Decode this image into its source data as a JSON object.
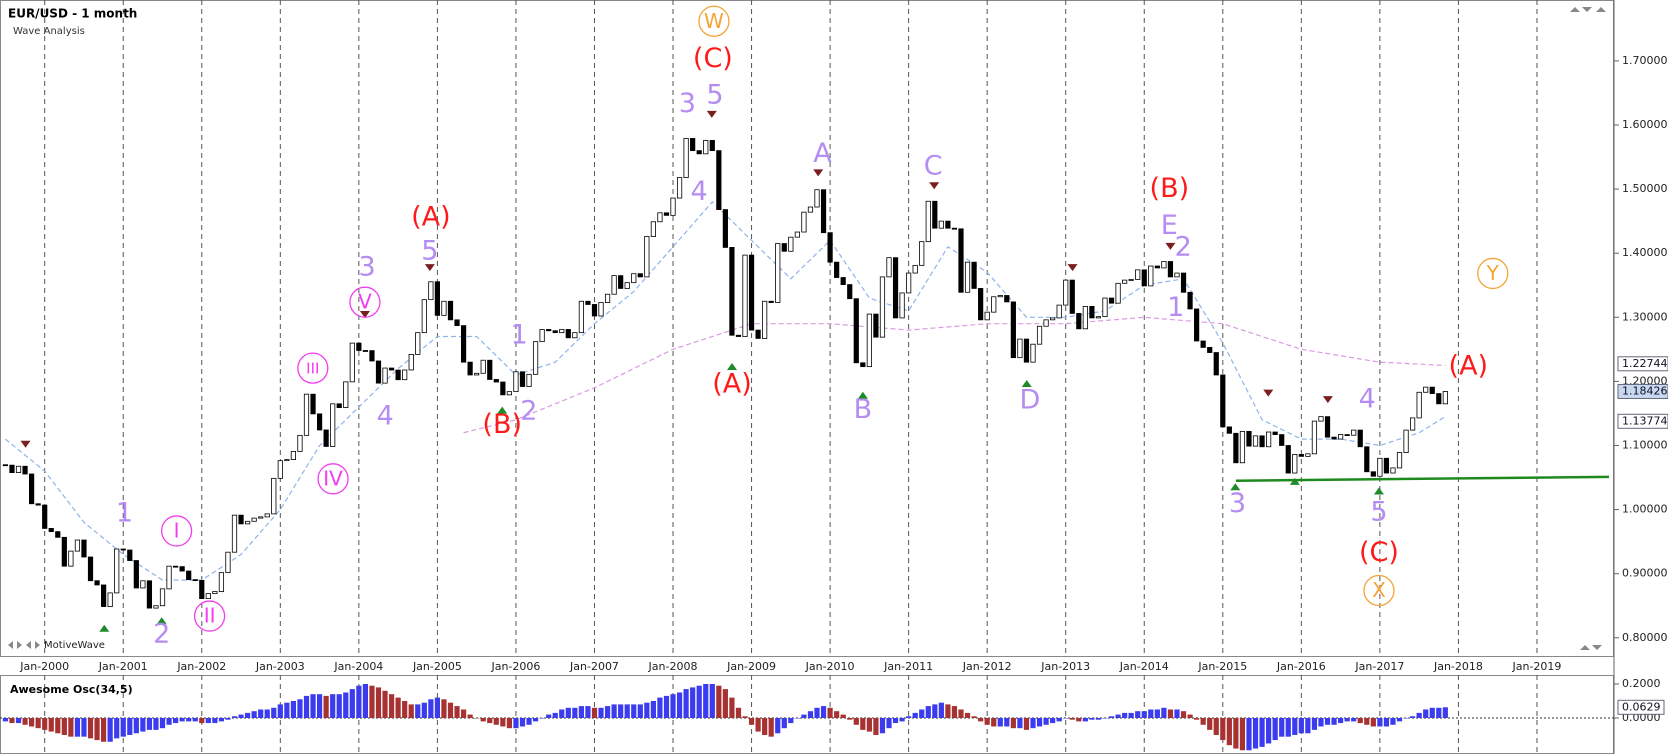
{
  "chart_data": {
    "type": "candlestick",
    "title": "EUR/USD - 1 month",
    "subtitle": "Wave Analysis",
    "watermark": "MotiveWave",
    "categories": [
      null,
      null,
      null,
      null,
      null,
      null,
      "Jan-2000",
      null,
      null,
      null,
      null,
      null,
      null,
      null,
      null,
      null,
      null,
      null,
      "Jan-2001",
      null,
      null,
      null,
      null,
      null,
      null,
      null,
      null,
      null,
      null,
      null,
      "Jan-2002",
      null,
      null,
      null,
      null,
      null,
      null,
      null,
      null,
      null,
      null,
      null,
      "Jan-2003",
      null,
      null,
      null,
      null,
      null,
      null,
      null,
      null,
      null,
      null,
      null,
      "Jan-2004",
      null,
      null,
      null,
      null,
      null,
      null,
      null,
      null,
      null,
      null,
      null,
      "Jan-2005",
      null,
      null,
      null,
      null,
      null,
      null,
      null,
      null,
      null,
      null,
      null,
      "Jan-2006",
      null,
      null,
      null,
      null,
      null,
      null,
      null,
      null,
      null,
      null,
      null,
      "Jan-2007",
      null,
      null,
      null,
      null,
      null,
      null,
      null,
      null,
      null,
      null,
      null,
      "Jan-2008",
      null,
      null,
      null,
      null,
      null,
      null,
      null,
      null,
      null,
      null,
      null,
      "Jan-2009",
      null,
      null,
      null,
      null,
      null,
      null,
      null,
      null,
      null,
      null,
      null,
      "Jan-2010",
      null,
      null,
      null,
      null,
      null,
      null,
      null,
      null,
      null,
      null,
      null,
      "Jan-2011",
      null,
      null,
      null,
      null,
      null,
      null,
      null,
      null,
      null,
      null,
      null,
      "Jan-2012",
      null,
      null,
      null,
      null,
      null,
      null,
      null,
      null,
      null,
      null,
      null,
      "Jan-2013",
      null,
      null,
      null,
      null,
      null,
      null,
      null,
      null,
      null,
      null,
      null,
      "Jan-2014",
      null,
      null,
      null,
      null,
      null,
      null,
      null,
      null,
      null,
      null,
      null,
      "Jan-2015",
      null,
      null,
      null,
      null,
      null,
      null,
      null,
      null,
      null,
      null,
      null,
      "Jan-2016",
      null,
      null,
      null,
      null,
      null,
      null,
      null,
      null,
      null,
      null,
      null,
      "Jan-2017",
      null,
      null,
      null,
      null,
      null,
      null,
      null,
      null,
      null,
      null,
      null,
      "Jan-2018",
      null,
      null,
      null,
      null,
      null,
      null,
      null,
      null,
      null,
      null,
      null,
      "Jan-2019",
      null,
      null,
      null,
      null,
      null,
      null,
      null,
      null,
      null,
      null,
      null
    ],
    "open": 1.07,
    "close": [
      1.0693,
      1.0577,
      1.0676,
      1.0555,
      1.0091,
      1.007,
      0.9706,
      0.9656,
      0.9567,
      0.9117,
      0.9352,
      0.9525,
      0.926,
      0.889,
      0.8824,
      0.8487,
      0.87,
      0.9385,
      0.9369,
      0.9205,
      0.8777,
      0.8889,
      0.8463,
      0.85,
      0.8763,
      0.9117,
      0.911,
      0.9041,
      0.8907,
      0.8895,
      0.8611,
      0.8689,
      0.8721,
      0.9016,
      0.9335,
      0.9913,
      0.9777,
      0.9817,
      0.9867,
      0.9886,
      0.9933,
      1.0487,
      1.0763,
      1.078,
      1.0907,
      1.1158,
      1.18,
      1.1493,
      1.1242,
      1.0985,
      1.165,
      1.1591,
      1.1993,
      1.2597,
      1.2482,
      1.248,
      1.2318,
      1.1973,
      1.2208,
      1.2177,
      1.2026,
      1.2178,
      1.2421,
      1.276,
      1.3275,
      1.3554,
      1.303,
      1.325,
      1.296,
      1.287,
      1.23,
      1.21,
      1.2126,
      1.233,
      1.203,
      1.199,
      1.179,
      1.184,
      1.215,
      1.192,
      1.211,
      1.262,
      1.281,
      1.279,
      1.276,
      1.281,
      1.268,
      1.276,
      1.325,
      1.32,
      1.302,
      1.323,
      1.336,
      1.365,
      1.345,
      1.354,
      1.368,
      1.363,
      1.426,
      1.449,
      1.463,
      1.459,
      1.486,
      1.518,
      1.579,
      1.56,
      1.555,
      1.576,
      1.56,
      1.468,
      1.409,
      1.272,
      1.27,
      1.397,
      1.28,
      1.267,
      1.325,
      1.323,
      1.415,
      1.403,
      1.425,
      1.433,
      1.464,
      1.472,
      1.499,
      1.432,
      1.386,
      1.362,
      1.351,
      1.329,
      1.229,
      1.223,
      1.305,
      1.269,
      1.363,
      1.393,
      1.299,
      1.338,
      1.369,
      1.381,
      1.418,
      1.481,
      1.439,
      1.45,
      1.439,
      1.438,
      1.339,
      1.386,
      1.345,
      1.296,
      1.308,
      1.332,
      1.334,
      1.324,
      1.237,
      1.266,
      1.23,
      1.258,
      1.286,
      1.296,
      1.299,
      1.319,
      1.358,
      1.306,
      1.282,
      1.317,
      1.299,
      1.301,
      1.33,
      1.322,
      1.353,
      1.358,
      1.359,
      1.374,
      1.349,
      1.38,
      1.377,
      1.387,
      1.363,
      1.369,
      1.339,
      1.313,
      1.263,
      1.253,
      1.245,
      1.21,
      1.129,
      1.119,
      1.073,
      1.122,
      1.099,
      1.115,
      1.098,
      1.121,
      1.117,
      1.1,
      1.057,
      1.086,
      1.083,
      1.087,
      1.138,
      1.145,
      1.113,
      1.11,
      1.117,
      1.116,
      1.124,
      1.098,
      1.059,
      1.052,
      1.08,
      1.057,
      1.065,
      1.089,
      1.124,
      1.143,
      1.183,
      1.191,
      1.181,
      1.165,
      1.1843,
      null,
      null,
      null,
      null,
      null,
      null,
      null,
      null,
      null,
      null,
      null,
      null,
      null,
      null,
      null,
      null,
      null,
      null,
      null,
      null,
      null,
      null,
      null,
      null,
      null
    ],
    "up_color": "#ffffff",
    "down_color": "#000000",
    "ylim": [
      0.77,
      1.795
    ],
    "yticks": [
      {
        "value": 0.8,
        "label": "0.80000"
      },
      {
        "value": 0.9,
        "label": "0.90000"
      },
      {
        "value": 1.0,
        "label": "1.00000"
      },
      {
        "value": 1.1,
        "label": "1.10000"
      },
      {
        "value": 1.2,
        "label": "1.20000"
      },
      {
        "value": 1.3,
        "label": "1.30000"
      },
      {
        "value": 1.4,
        "label": "1.40000"
      },
      {
        "value": 1.5,
        "label": "1.50000"
      },
      {
        "value": 1.6,
        "label": "1.60000"
      },
      {
        "value": 1.7,
        "label": "1.70000"
      }
    ],
    "price_flags": [
      {
        "value": 1.22744,
        "label": "1.22744",
        "bg": "#ffffff"
      },
      {
        "value": 1.18426,
        "label": "1.18426",
        "bg": "#c6d9f1"
      },
      {
        "value": 1.13774,
        "label": "1.13774",
        "bg": "#ffffff"
      }
    ],
    "grid": true,
    "overlays": [
      {
        "color": "#8fb4ec",
        "dash": true,
        "x": [
          "Jul-1999",
          "Jan-2000",
          "Jul-2000",
          "Jan-2001",
          "Jul-2001",
          "Jan-2002",
          "Jul-2002",
          "Jan-2003",
          "Jul-2003",
          "Jan-2004",
          "Jul-2004",
          "Jan-2005",
          "Jul-2005",
          "Jan-2006",
          "Jul-2006",
          "Jan-2007",
          "Jul-2007",
          "Jan-2008",
          "Jul-2008",
          "Jan-2009",
          "Jul-2009",
          "Jan-2010",
          "Jul-2010",
          "Jan-2011",
          "Jul-2011",
          "Jan-2012",
          "Jul-2012",
          "Jan-2013",
          "Jul-2013",
          "Jan-2014",
          "Jul-2014",
          "Jan-2015",
          "Jul-2015",
          "Jan-2016",
          "Jul-2016",
          "Jan-2017",
          "Jul-2017",
          "Nov-2017"
        ],
        "values": [
          1.11,
          1.06,
          0.98,
          0.93,
          0.89,
          0.89,
          0.93,
          1.0,
          1.1,
          1.16,
          1.22,
          1.27,
          1.27,
          1.21,
          1.23,
          1.29,
          1.34,
          1.41,
          1.48,
          1.42,
          1.36,
          1.42,
          1.33,
          1.31,
          1.41,
          1.37,
          1.3,
          1.3,
          1.31,
          1.35,
          1.36,
          1.26,
          1.14,
          1.11,
          1.11,
          1.1,
          1.12,
          1.145
        ]
      },
      {
        "color": "#d99be0",
        "dash": true,
        "x": [
          "May-2005",
          "Jan-2006",
          "Jan-2007",
          "Jan-2008",
          "Jan-2009",
          "Jan-2010",
          "Jan-2011",
          "Jan-2012",
          "Jan-2013",
          "Jan-2014",
          "Jan-2015",
          "Jan-2016",
          "Jan-2017",
          "Nov-2017"
        ],
        "values": [
          1.12,
          1.14,
          1.19,
          1.25,
          1.29,
          1.29,
          1.28,
          1.29,
          1.29,
          1.3,
          1.29,
          1.25,
          1.23,
          1.225
        ]
      },
      {
        "color": "#1e8a1e",
        "dash": false,
        "x": [
          "Mar-2015",
          "Dec-2019"
        ],
        "values": [
          1.045,
          1.051
        ]
      }
    ],
    "wave_labels": [
      {
        "text": "W",
        "color": "#f5a236",
        "circled": true
      },
      {
        "text": "(C)",
        "color": "#ff1a1a",
        "circled": false
      },
      {
        "text": "3",
        "color": "#b48cf2",
        "circled": false
      },
      {
        "text": "5",
        "color": "#b48cf2",
        "circled": false
      },
      {
        "text": "4",
        "color": "#b48cf2",
        "circled": false
      },
      {
        "text": "(A)",
        "color": "#ff1a1a",
        "circled": false
      },
      {
        "text": "5",
        "color": "#b48cf2",
        "circled": false
      },
      {
        "text": "3",
        "color": "#b48cf2",
        "circled": false
      },
      {
        "text": "V",
        "color": "#f23cf0",
        "circled": true
      },
      {
        "text": "III",
        "color": "#f23cf0",
        "circled": true
      },
      {
        "text": "IV",
        "color": "#f23cf0",
        "circled": true
      },
      {
        "text": "4",
        "color": "#b48cf2",
        "circled": false
      },
      {
        "text": "1",
        "color": "#b48cf2",
        "circled": false
      },
      {
        "text": "2",
        "color": "#b48cf2",
        "circled": false
      },
      {
        "text": "(B)",
        "color": "#ff1a1a",
        "circled": false
      },
      {
        "text": "(A)",
        "color": "#ff1a1a",
        "circled": false
      },
      {
        "text": "A",
        "color": "#b48cf2",
        "circled": false
      },
      {
        "text": "B",
        "color": "#b48cf2",
        "circled": false
      },
      {
        "text": "C",
        "color": "#b48cf2",
        "circled": false
      },
      {
        "text": "D",
        "color": "#b48cf2",
        "circled": false
      },
      {
        "text": "(B)",
        "color": "#ff1a1a",
        "circled": false
      },
      {
        "text": "E",
        "color": "#b48cf2",
        "circled": false
      },
      {
        "text": "2",
        "color": "#b48cf2",
        "circled": false
      },
      {
        "text": "1",
        "color": "#b48cf2",
        "circled": false
      },
      {
        "text": "Y",
        "color": "#f5a236",
        "circled": true
      },
      {
        "text": "(A)",
        "color": "#ff1a1a",
        "circled": false
      },
      {
        "text": "3",
        "color": "#b48cf2",
        "circled": false
      },
      {
        "text": "4",
        "color": "#b48cf2",
        "circled": false
      },
      {
        "text": "5",
        "color": "#b48cf2",
        "circled": false
      },
      {
        "text": "(C)",
        "color": "#ff1a1a",
        "circled": false
      },
      {
        "text": "X",
        "color": "#f5a236",
        "circled": true
      },
      {
        "text": "1",
        "color": "#b48cf2",
        "circled": false
      },
      {
        "text": "I",
        "color": "#f23cf0",
        "circled": true
      },
      {
        "text": "II",
        "color": "#f23cf0",
        "circled": true
      },
      {
        "text": "2",
        "color": "#b48cf2",
        "circled": false
      }
    ],
    "oscillator": {
      "type": "bar",
      "title": "Awesome Osc(34,5)",
      "up_color": "#3b3bf0",
      "down_color": "#a83232",
      "values": [
        -0.02,
        -0.03,
        -0.03,
        -0.04,
        -0.05,
        -0.06,
        -0.07,
        -0.08,
        -0.09,
        -0.1,
        -0.11,
        -0.11,
        -0.11,
        -0.12,
        -0.13,
        -0.14,
        -0.14,
        -0.12,
        -0.11,
        -0.1,
        -0.09,
        -0.08,
        -0.07,
        -0.07,
        -0.06,
        -0.04,
        -0.03,
        -0.02,
        -0.02,
        -0.02,
        -0.03,
        -0.03,
        -0.03,
        -0.02,
        -0.01,
        0.01,
        0.02,
        0.03,
        0.04,
        0.05,
        0.05,
        0.06,
        0.08,
        0.09,
        0.1,
        0.11,
        0.13,
        0.14,
        0.14,
        0.13,
        0.14,
        0.14,
        0.15,
        0.17,
        0.19,
        0.2,
        0.19,
        0.18,
        0.16,
        0.14,
        0.12,
        0.1,
        0.08,
        0.08,
        0.09,
        0.11,
        0.12,
        0.11,
        0.09,
        0.07,
        0.05,
        0.02,
        0.0,
        -0.02,
        -0.03,
        -0.04,
        -0.05,
        -0.06,
        -0.06,
        -0.05,
        -0.04,
        -0.02,
        0.0,
        0.02,
        0.03,
        0.05,
        0.06,
        0.06,
        0.07,
        0.07,
        0.06,
        0.06,
        0.07,
        0.08,
        0.08,
        0.08,
        0.08,
        0.08,
        0.09,
        0.1,
        0.12,
        0.13,
        0.14,
        0.15,
        0.17,
        0.18,
        0.19,
        0.2,
        0.2,
        0.19,
        0.17,
        0.12,
        0.06,
        0.01,
        -0.04,
        -0.08,
        -0.1,
        -0.11,
        -0.09,
        -0.06,
        -0.03,
        0.0,
        0.02,
        0.04,
        0.06,
        0.07,
        0.06,
        0.04,
        0.02,
        -0.01,
        -0.04,
        -0.07,
        -0.08,
        -0.1,
        -0.09,
        -0.06,
        -0.03,
        -0.02,
        0.01,
        0.03,
        0.05,
        0.07,
        0.08,
        0.09,
        0.08,
        0.07,
        0.05,
        0.03,
        0.01,
        -0.02,
        -0.04,
        -0.05,
        -0.05,
        -0.05,
        -0.06,
        -0.06,
        -0.07,
        -0.06,
        -0.05,
        -0.04,
        -0.03,
        -0.02,
        0.0,
        -0.01,
        -0.02,
        -0.02,
        -0.01,
        -0.01,
        0.0,
        0.01,
        0.02,
        0.03,
        0.03,
        0.04,
        0.04,
        0.05,
        0.05,
        0.06,
        0.05,
        0.05,
        0.04,
        0.02,
        -0.01,
        -0.04,
        -0.07,
        -0.1,
        -0.13,
        -0.16,
        -0.18,
        -0.19,
        -0.19,
        -0.18,
        -0.17,
        -0.15,
        -0.13,
        -0.11,
        -0.11,
        -0.1,
        -0.09,
        -0.09,
        -0.07,
        -0.05,
        -0.04,
        -0.04,
        -0.03,
        -0.02,
        -0.02,
        -0.03,
        -0.04,
        -0.05,
        -0.05,
        -0.05,
        -0.04,
        -0.02,
        0.0,
        0.01,
        0.03,
        0.05,
        0.06,
        0.06,
        0.0629,
        null,
        null,
        null,
        null,
        null,
        null,
        null,
        null,
        null,
        null,
        null,
        null,
        null,
        null,
        null,
        null,
        null,
        null,
        null,
        null,
        null,
        null,
        null,
        null,
        null
      ],
      "ylim": [
        -0.212,
        0.253
      ],
      "yticks": [
        {
          "value": 0,
          "label": "0.0000"
        },
        {
          "value": 0.2,
          "label": "0.2000"
        }
      ],
      "flag": {
        "value": 0.0629,
        "label": "0.0629"
      }
    }
  }
}
